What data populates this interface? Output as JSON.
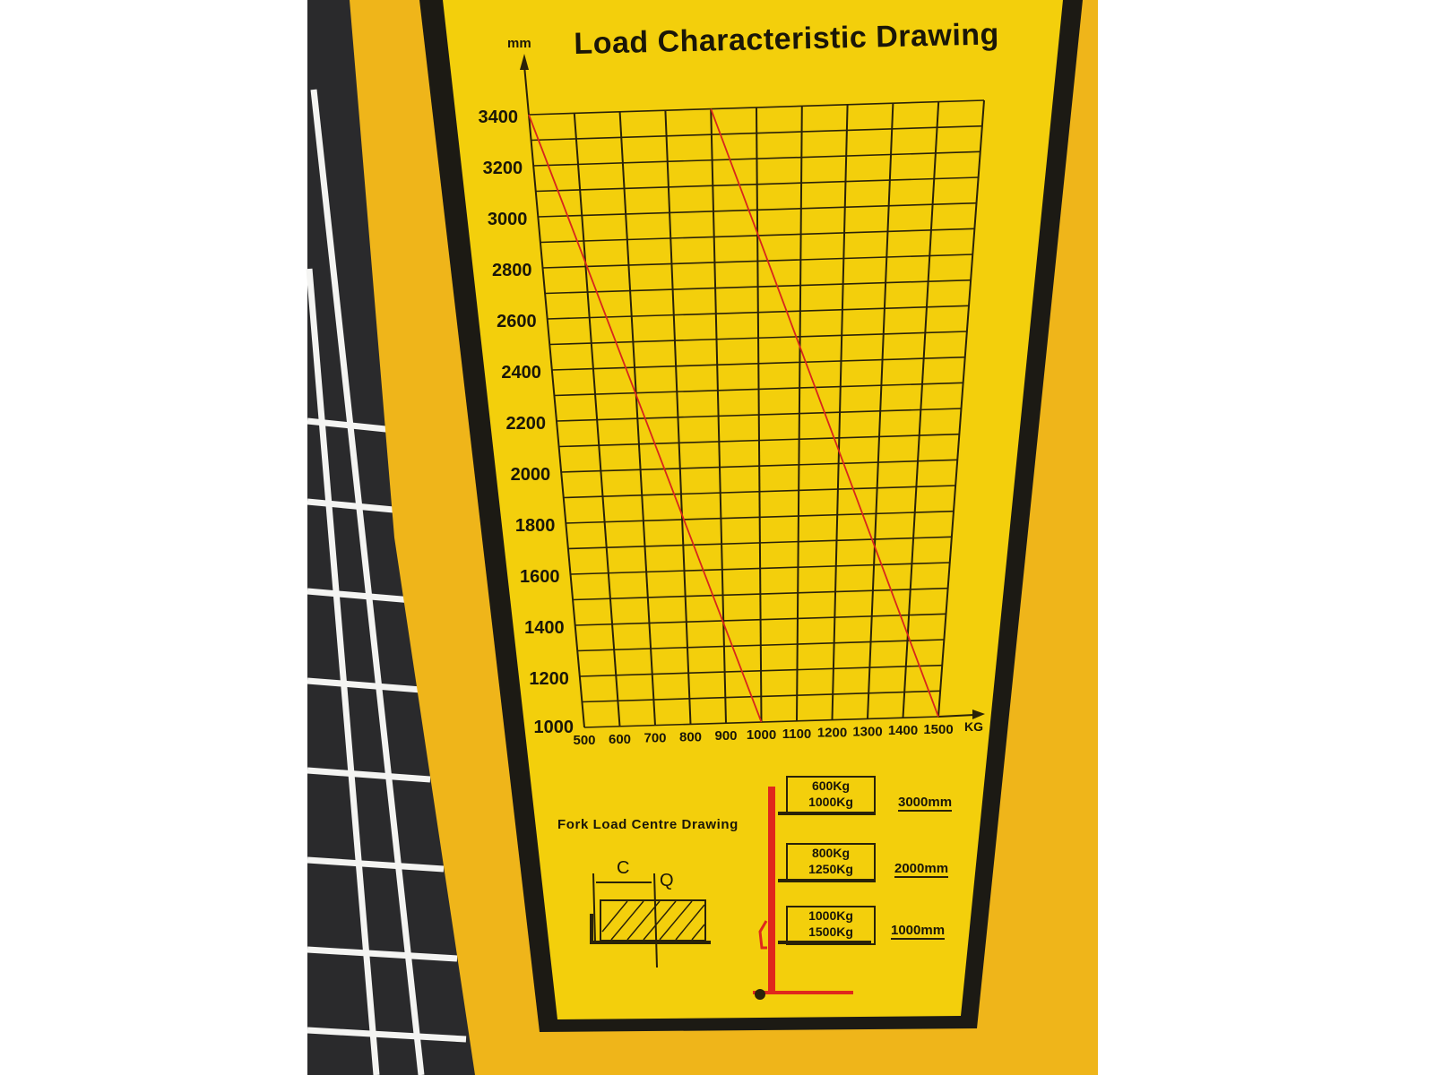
{
  "chart_data": {
    "type": "line",
    "title": "Load Characteristic Drawing",
    "xlabel": "KG",
    "ylabel": "mm",
    "xlim": [
      500,
      1500
    ],
    "ylim": [
      1000,
      3400
    ],
    "grid": true,
    "x_ticks": [
      "500",
      "600",
      "700",
      "800",
      "900",
      "1000",
      "1100",
      "1200",
      "1300",
      "1400",
      "1500"
    ],
    "y_ticks": [
      "3400",
      "3200",
      "3000",
      "2800",
      "2600",
      "2400",
      "2200",
      "2000",
      "1800",
      "1600",
      "1400",
      "1200",
      "1000"
    ],
    "series": [
      {
        "x": [
          500,
          1000
        ],
        "y": [
          3400,
          1000
        ],
        "color": "#d8261c"
      },
      {
        "x": [
          900,
          1500
        ],
        "y": [
          3400,
          1000
        ],
        "color": "#d8261c"
      }
    ]
  },
  "fork_diagram": {
    "title": "Fork Load Centre Drawing",
    "label_c": "C",
    "label_q": "Q",
    "levels": [
      {
        "loads": [
          "600Kg",
          "1000Kg"
        ],
        "height": "3000mm"
      },
      {
        "loads": [
          "800Kg",
          "1250Kg"
        ],
        "height": "2000mm"
      },
      {
        "loads": [
          "1000Kg",
          "1500Kg"
        ],
        "height": "1000mm"
      }
    ]
  },
  "colors": {
    "label": "#f3cf0c",
    "panel": "#efb51a",
    "frame": "#1c1a14",
    "line": "#d8261c",
    "mast": "#e0281c"
  }
}
